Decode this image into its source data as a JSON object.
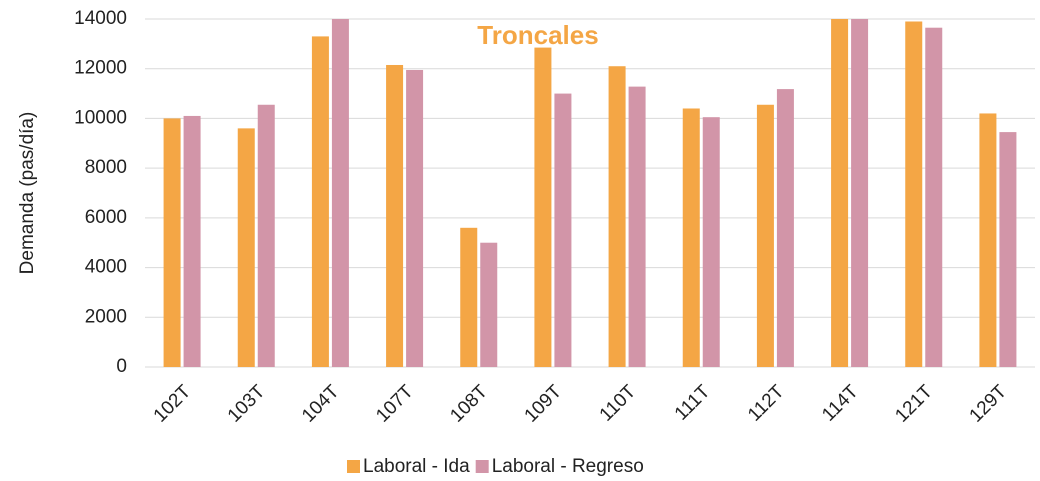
{
  "chart_data": {
    "type": "bar",
    "title": "Troncales",
    "y_label": "Demanda (pas/día)",
    "categories": [
      "102T",
      "103T",
      "104T",
      "107T",
      "108T",
      "109T",
      "110T",
      "111T",
      "112T",
      "114T",
      "121T",
      "129T"
    ],
    "series": [
      {
        "name": "Laboral - Ida",
        "color": "#f4a645",
        "values": [
          10000,
          9600,
          13300,
          12150,
          5600,
          12850,
          12100,
          10400,
          10550,
          14000,
          13900,
          10200
        ]
      },
      {
        "name": "Laboral - Regreso",
        "color": "#d295a8",
        "values": [
          10100,
          10550,
          14000,
          11950,
          5000,
          11000,
          11280,
          10050,
          11180,
          14000,
          13650,
          9450
        ]
      }
    ],
    "ylim": [
      0,
      14000
    ],
    "yticks": [
      0,
      2000,
      4000,
      6000,
      8000,
      10000,
      12000,
      14000
    ],
    "grid": true,
    "legend": "bottom"
  }
}
